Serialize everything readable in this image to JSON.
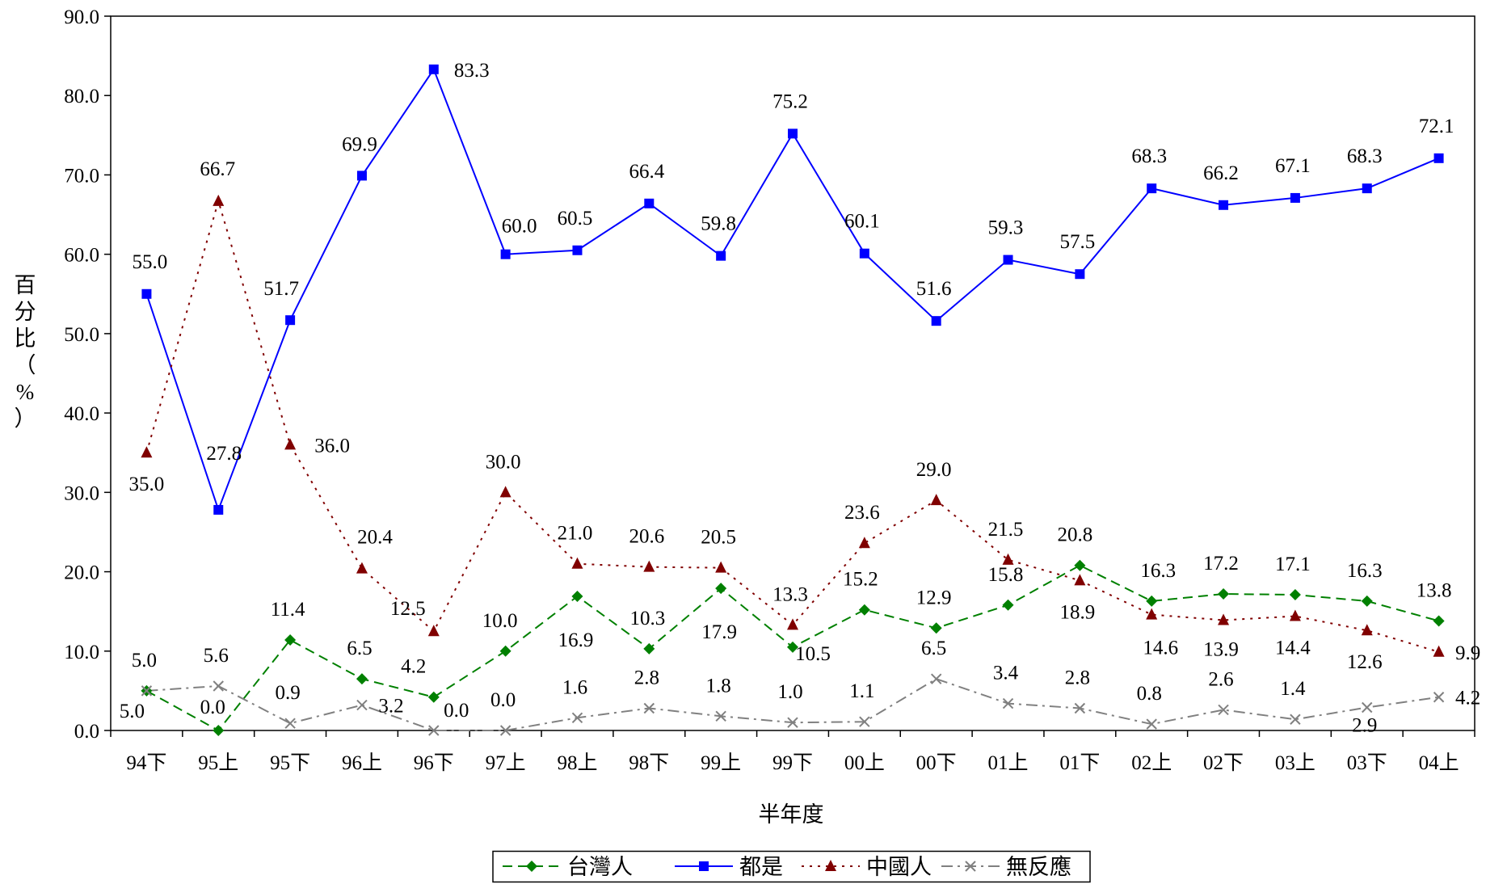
{
  "chart_data": {
    "type": "line",
    "title": "",
    "xlabel": "半年度",
    "ylabel": "百分比（%）",
    "ylim": [
      0,
      90
    ],
    "ytick_step": 10,
    "ytick_labels": [
      "0.0",
      "10.0",
      "20.0",
      "30.0",
      "40.0",
      "50.0",
      "60.0",
      "70.0",
      "80.0",
      "90.0"
    ],
    "grid": false,
    "legend_position": "bottom",
    "categories": [
      "94下",
      "95上",
      "95下",
      "96上",
      "96下",
      "97上",
      "98上",
      "98下",
      "99上",
      "99下",
      "00上",
      "00下",
      "01上",
      "01下",
      "02上",
      "02下",
      "03上",
      "03下",
      "04上"
    ],
    "series": [
      {
        "name": "台灣人",
        "color": "#008000",
        "marker": "diamond",
        "dash": "dashed",
        "values": [
          5.0,
          0.0,
          11.4,
          6.5,
          4.2,
          10.0,
          16.9,
          10.3,
          17.9,
          10.5,
          15.2,
          12.9,
          15.8,
          20.8,
          16.3,
          17.2,
          17.1,
          16.3,
          13.8
        ],
        "labels": [
          "5.0",
          "0.0",
          "11.4",
          "6.5",
          "4.2",
          "10.0",
          "16.9",
          "10.3",
          "17.9",
          "10.5",
          "15.2",
          "12.9",
          "15.8",
          "20.8",
          "16.3",
          "17.2",
          "17.1",
          "16.3",
          "13.8"
        ]
      },
      {
        "name": "都是",
        "color": "#0000ff",
        "marker": "square",
        "dash": "solid",
        "values": [
          55.0,
          27.8,
          51.7,
          69.9,
          83.3,
          60.0,
          60.5,
          66.4,
          59.8,
          75.2,
          60.1,
          51.6,
          59.3,
          57.5,
          68.3,
          66.2,
          67.1,
          68.3,
          72.1
        ],
        "labels": [
          "55.0",
          "27.8",
          "51.7",
          "69.9",
          "83.3",
          "60.0",
          "60.5",
          "66.4",
          "59.8",
          "75.2",
          "60.1",
          "51.6",
          "59.3",
          "57.5",
          "68.3",
          "66.2",
          "67.1",
          "68.3",
          "72.1"
        ]
      },
      {
        "name": "中國人",
        "color": "#800000",
        "marker": "triangle",
        "dash": "dotted",
        "values": [
          35.0,
          66.7,
          36.0,
          20.4,
          12.5,
          30.0,
          21.0,
          20.6,
          20.5,
          13.3,
          23.6,
          29.0,
          21.5,
          18.9,
          14.6,
          13.9,
          14.4,
          12.6,
          9.9
        ],
        "labels": [
          "35.0",
          "66.7",
          "36.0",
          "20.4",
          "12.5",
          "30.0",
          "21.0",
          "20.6",
          "20.5",
          "13.3",
          "23.6",
          "29.0",
          "21.5",
          "18.9",
          "14.6",
          "13.9",
          "14.4",
          "12.6",
          "9.9"
        ]
      },
      {
        "name": "無反應",
        "color": "#808080",
        "marker": "x",
        "dash": "dashdot",
        "values": [
          5.0,
          5.6,
          0.9,
          3.2,
          0.0,
          0.0,
          1.6,
          2.8,
          1.8,
          1.0,
          1.1,
          6.5,
          3.4,
          2.8,
          0.8,
          2.6,
          1.4,
          2.9,
          4.2
        ],
        "labels": [
          "5.0",
          "5.6",
          "0.9",
          "3.2",
          "0.0",
          "0.0",
          "1.6",
          "2.8",
          "1.8",
          "1.0",
          "1.1",
          "6.5",
          "3.4",
          "2.8",
          "0.8",
          "2.6",
          "1.4",
          "2.9",
          "4.2"
        ]
      }
    ]
  }
}
